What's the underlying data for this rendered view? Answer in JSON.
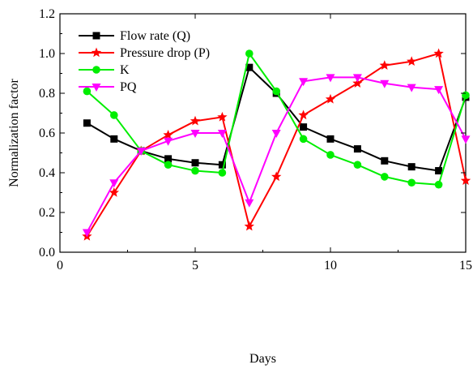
{
  "chart_data": {
    "type": "line",
    "xlabel": "Days",
    "ylabel": "Normalization factor",
    "xlim": [
      0,
      15
    ],
    "ylim": [
      0.0,
      1.2
    ],
    "xticks": [
      0,
      5,
      10,
      15
    ],
    "yticks": [
      0.0,
      0.2,
      0.4,
      0.6,
      0.8,
      1.0,
      1.2
    ],
    "xtick_labels": [
      "0",
      "5",
      "10",
      "15"
    ],
    "ytick_labels": [
      "0.0",
      "0.2",
      "0.4",
      "0.6",
      "0.8",
      "1.0",
      "1.2"
    ],
    "legend_position": "top-left",
    "grid": false,
    "x": [
      1,
      2,
      3,
      4,
      5,
      6,
      7,
      8,
      9,
      10,
      11,
      12,
      13,
      14,
      15
    ],
    "series": [
      {
        "name": "Flow rate (Q)",
        "color": "#000000",
        "marker": "square",
        "values": [
          0.65,
          0.57,
          0.51,
          0.47,
          0.45,
          0.44,
          0.93,
          0.8,
          0.63,
          0.57,
          0.52,
          0.46,
          0.43,
          0.41,
          0.78
        ]
      },
      {
        "name": "Pressure drop (P)",
        "color": "#ff0000",
        "marker": "star",
        "values": [
          0.08,
          0.3,
          0.51,
          0.59,
          0.66,
          0.68,
          0.13,
          0.38,
          0.69,
          0.77,
          0.85,
          0.94,
          0.96,
          1.0,
          0.36
        ]
      },
      {
        "name": "K",
        "color": "#00ee00",
        "marker": "circle",
        "values": [
          0.81,
          0.69,
          0.51,
          0.44,
          0.41,
          0.4,
          1.0,
          0.81,
          0.57,
          0.49,
          0.44,
          0.38,
          0.35,
          0.34,
          0.79
        ]
      },
      {
        "name": "PQ",
        "color": "#ff00ff",
        "marker": "triangle-down",
        "values": [
          0.1,
          0.35,
          0.51,
          0.56,
          0.6,
          0.6,
          0.25,
          0.6,
          0.86,
          0.88,
          0.88,
          0.85,
          0.83,
          0.82,
          0.57
        ]
      }
    ]
  }
}
